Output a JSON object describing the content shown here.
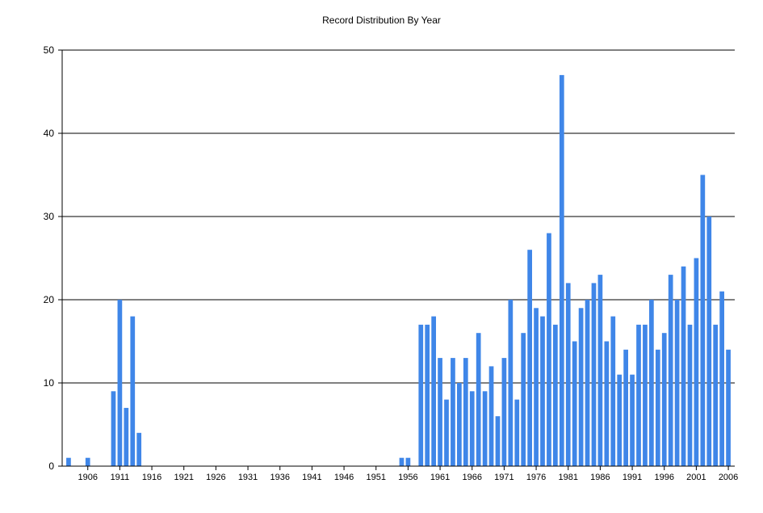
{
  "chart_data": {
    "type": "bar",
    "title": "Record Distribution By Year",
    "xlabel": "",
    "ylabel": "",
    "ylim": [
      0,
      50
    ],
    "yticks": [
      0,
      10,
      20,
      30,
      40,
      50
    ],
    "xlim": [
      1902,
      2007
    ],
    "xticks": [
      1906,
      1911,
      1916,
      1921,
      1926,
      1931,
      1936,
      1941,
      1946,
      1951,
      1956,
      1961,
      1966,
      1971,
      1976,
      1981,
      1986,
      1991,
      1996,
      2001,
      2006
    ],
    "grid": "horizontal",
    "legend": "none",
    "bar_color": "#3f86e8",
    "x": [
      1903,
      1906,
      1910,
      1911,
      1912,
      1913,
      1914,
      1955,
      1956,
      1958,
      1959,
      1960,
      1961,
      1962,
      1963,
      1964,
      1965,
      1966,
      1967,
      1968,
      1969,
      1970,
      1971,
      1972,
      1973,
      1974,
      1975,
      1976,
      1977,
      1978,
      1979,
      1980,
      1981,
      1982,
      1983,
      1984,
      1985,
      1986,
      1987,
      1988,
      1989,
      1990,
      1991,
      1992,
      1993,
      1994,
      1995,
      1996,
      1997,
      1998,
      1999,
      2000,
      2001,
      2002,
      2003,
      2004,
      2005,
      2006
    ],
    "values": [
      1,
      1,
      9,
      20,
      7,
      18,
      4,
      1,
      1,
      17,
      17,
      18,
      13,
      8,
      13,
      10,
      13,
      9,
      16,
      9,
      12,
      6,
      13,
      20,
      8,
      16,
      26,
      19,
      18,
      28,
      17,
      47,
      22,
      15,
      19,
      20,
      22,
      23,
      15,
      18,
      11,
      14,
      11,
      17,
      17,
      20,
      14,
      16,
      23,
      20,
      24,
      17,
      25,
      35,
      30,
      17,
      21,
      14
    ]
  }
}
